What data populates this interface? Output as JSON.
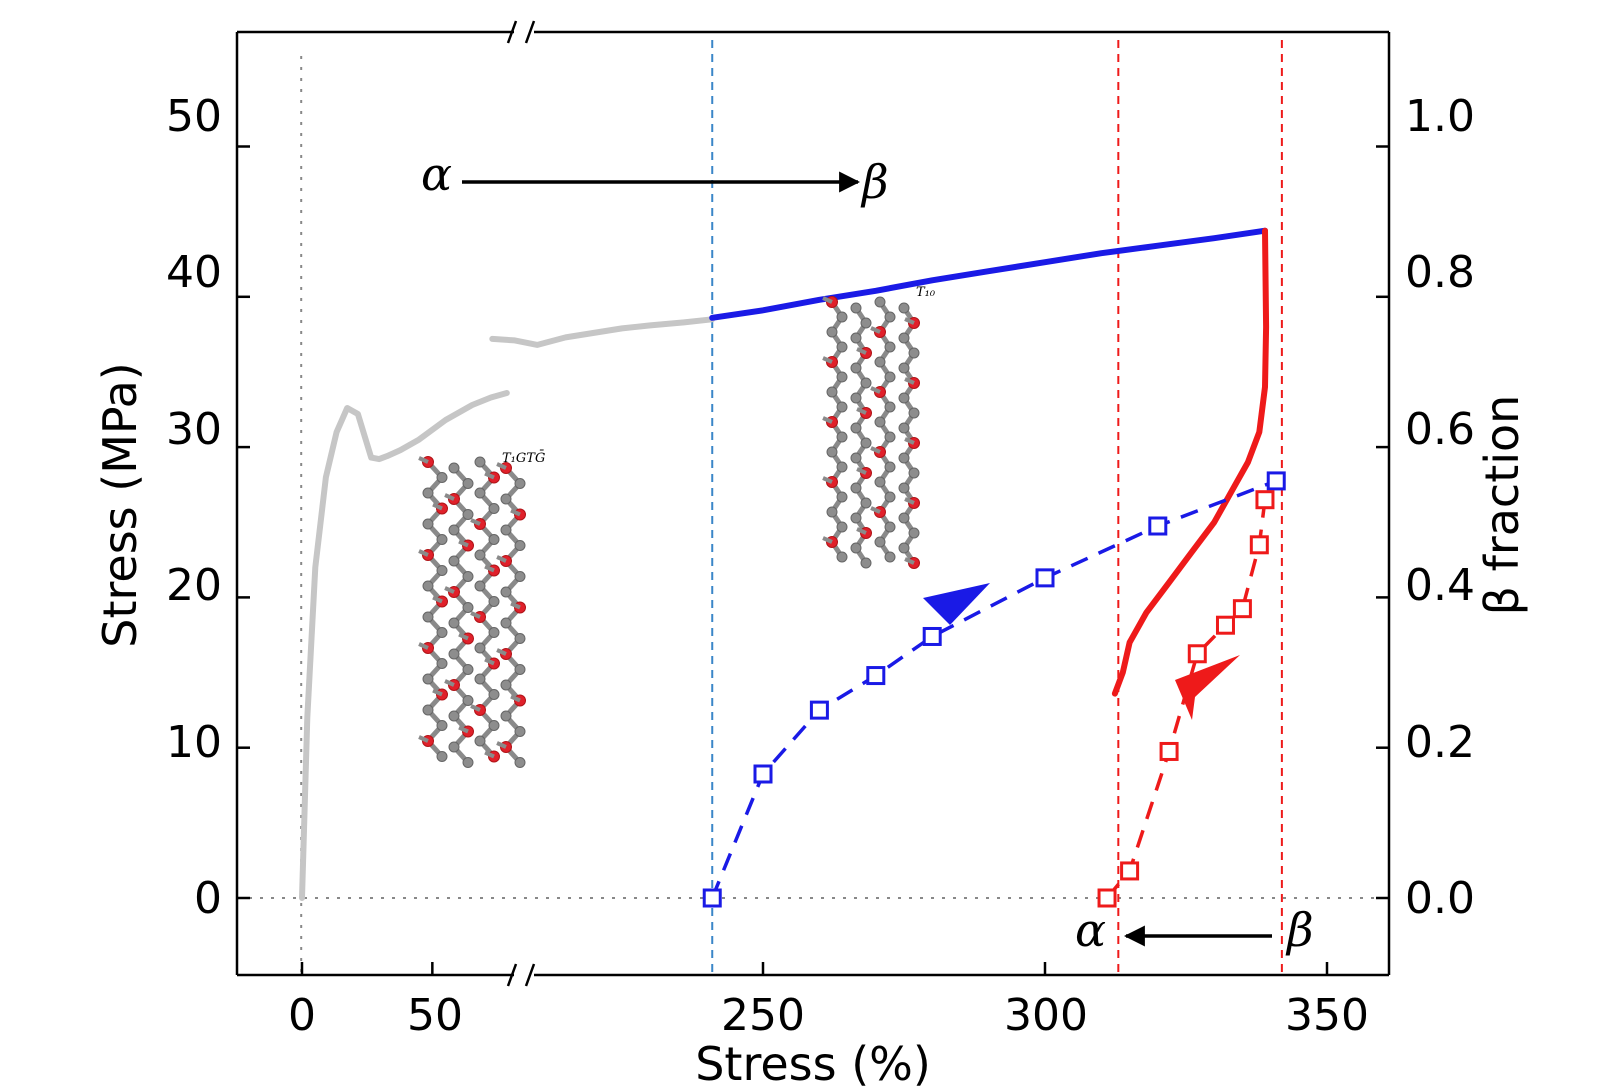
{
  "chart_data": {
    "type": "line",
    "xlabel": "Stress (%)",
    "ylabel": "Stress (MPa)",
    "y2label": "β fraction",
    "x_ticks": [
      "0",
      "50",
      "250",
      "300",
      "350"
    ],
    "y_ticks": [
      "0",
      "10",
      "20",
      "30",
      "40",
      "50"
    ],
    "y2_ticks": [
      "0.0",
      "0.2",
      "0.4",
      "0.6",
      "0.8",
      "1.0"
    ],
    "ylim": [
      -5,
      55
    ],
    "y2lim": [
      -0.1,
      1.1
    ],
    "x_axis_break": "between 50 and 250",
    "annotations": {
      "top_from": "α",
      "top_to": "β",
      "bottom_from": "β",
      "bottom_to": "α",
      "conf_left": "T₁GTḠ",
      "conf_right": "T₁₀"
    },
    "series": [
      {
        "color": "#c6c6c6",
        "axis": "left",
        "style": "solid",
        "x": [
          1,
          3,
          6,
          10,
          14,
          18,
          22,
          27,
          30,
          33,
          38,
          45,
          55,
          65,
          72,
          78
        ],
        "y": [
          0,
          12,
          22,
          28,
          31,
          32.6,
          32.2,
          29.3,
          29.2,
          29.4,
          29.8,
          30.5,
          31.8,
          32.8,
          33.3,
          33.6
        ]
      },
      {
        "color": "#c6c6c6",
        "axis": "left",
        "style": "solid",
        "x": [
          202,
          206,
          210,
          215,
          220,
          225,
          230,
          236,
          241
        ],
        "y": [
          37.2,
          37.1,
          36.8,
          37.3,
          37.6,
          37.9,
          38.1,
          38.3,
          38.5
        ]
      },
      {
        "color": "#1a1ae6",
        "axis": "left",
        "style": "solid",
        "x": [
          241,
          250,
          260,
          270,
          280,
          290,
          300,
          310,
          320,
          330,
          339
        ],
        "y": [
          38.6,
          39.1,
          39.8,
          40.4,
          41.1,
          41.7,
          42.3,
          42.9,
          43.4,
          43.9,
          44.4
        ]
      },
      {
        "color": "#ee1a1a",
        "axis": "left",
        "style": "solid",
        "x": [
          339,
          339.2,
          339,
          338,
          336,
          333,
          330,
          326,
          322,
          318,
          315,
          313.8,
          312.4
        ],
        "y": [
          44.4,
          38,
          34,
          31,
          29,
          27,
          25,
          23,
          21,
          19,
          17,
          15,
          13.6
        ]
      },
      {
        "name": "",
        "color": "#1a1ae6",
        "axis": "right",
        "style": "dashed-markers",
        "x": [
          241,
          250,
          260,
          270,
          280,
          300,
          320,
          341
        ],
        "y": [
          0.0,
          0.165,
          0.25,
          0.296,
          0.348,
          0.426,
          0.495,
          0.555
        ]
      },
      {
        "name": "",
        "color": "#ee1a1a",
        "axis": "right",
        "style": "dashed-markers",
        "x": [
          311,
          315,
          322,
          327,
          332,
          335,
          338,
          339
        ],
        "y": [
          0.0,
          0.036,
          0.195,
          0.325,
          0.363,
          0.385,
          0.47,
          0.53
        ]
      }
    ],
    "reference_lines": [
      {
        "orientation": "vertical",
        "x": 0.7,
        "color": "#888888",
        "style": "dotted"
      },
      {
        "orientation": "horizontal",
        "y": 0,
        "color": "#888888",
        "style": "dotted"
      },
      {
        "orientation": "vertical",
        "x": 241,
        "color": "#3a86c8",
        "style": "dashed"
      },
      {
        "orientation": "vertical",
        "x": 313,
        "color": "#ee1a1a",
        "style": "dashed"
      },
      {
        "orientation": "vertical",
        "x": 342,
        "color": "#ee1a1a",
        "style": "dashed"
      }
    ],
    "grid": false,
    "legend": "none"
  }
}
